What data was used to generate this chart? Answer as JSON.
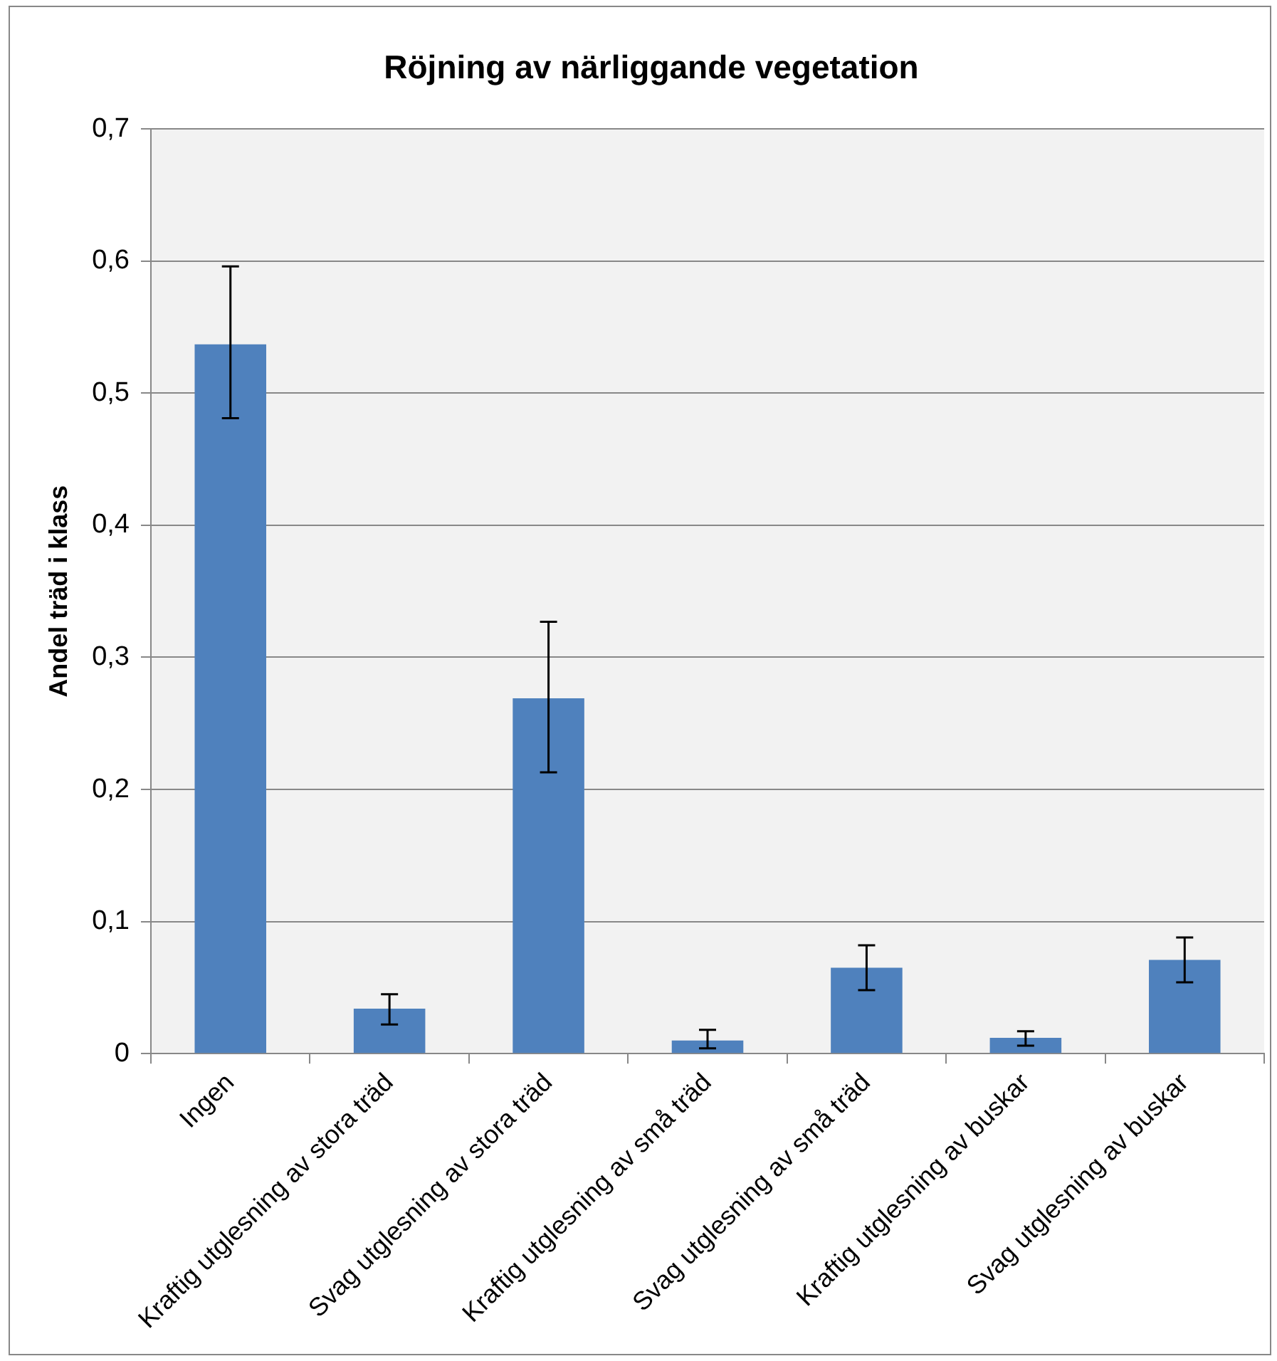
{
  "chart_data": {
    "type": "bar",
    "title": "Röjning av närliggande vegetation",
    "ylabel": "Andel träd i klass",
    "categories": [
      "Ingen",
      "Kraftig utglesning av stora träd",
      "Svag utglesning av stora träd",
      "Kraftig utglesning av små träd",
      "Svag utglesning av små träd",
      "Kraftig utglesning av buskar",
      "Svag utglesning av buskar"
    ],
    "values": [
      0.537,
      0.034,
      0.269,
      0.01,
      0.065,
      0.012,
      0.071
    ],
    "errors": [
      [
        0.481,
        0.596
      ],
      [
        0.022,
        0.045
      ],
      [
        0.213,
        0.327
      ],
      [
        0.004,
        0.018
      ],
      [
        0.048,
        0.082
      ],
      [
        0.006,
        0.017
      ],
      [
        0.054,
        0.088
      ]
    ],
    "color": "#4f81bd",
    "ylim": [
      0,
      0.7
    ],
    "yticks": [
      {
        "value": 0,
        "label": "0"
      },
      {
        "value": 0.1,
        "label": "0,1"
      },
      {
        "value": 0.2,
        "label": "0,2"
      },
      {
        "value": 0.3,
        "label": "0,3"
      },
      {
        "value": 0.4,
        "label": "0,4"
      },
      {
        "value": 0.5,
        "label": "0,5"
      },
      {
        "value": 0.6,
        "label": "0,6"
      },
      {
        "value": 0.7,
        "label": "0,7"
      }
    ],
    "grid": "y",
    "legend": false
  }
}
